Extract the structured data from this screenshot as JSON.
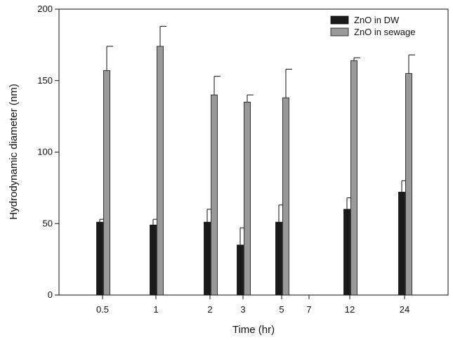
{
  "chart_data": {
    "type": "bar",
    "xlabel": "Time (hr)",
    "ylabel": "Hydrodynamic diameter (nm)",
    "ylim": [
      0,
      200
    ],
    "yticks": [
      0,
      50,
      100,
      150,
      200
    ],
    "categories": [
      "0.5",
      "1",
      "2",
      "3",
      "5",
      "7",
      "12",
      "24"
    ],
    "series": [
      {
        "name": "ZnO in DW",
        "color": "#1a1a1a",
        "values": [
          51,
          49,
          51,
          35,
          51,
          null,
          60,
          72
        ],
        "errors": [
          2,
          4,
          9,
          12,
          12,
          null,
          8,
          8
        ]
      },
      {
        "name": "ZnO in sewage",
        "color": "#999999",
        "values": [
          157,
          174,
          140,
          135,
          138,
          null,
          164,
          155
        ],
        "errors": [
          17,
          14,
          13,
          5,
          20,
          null,
          2,
          13
        ]
      }
    ],
    "legend_position": "top-right",
    "grid": false
  }
}
